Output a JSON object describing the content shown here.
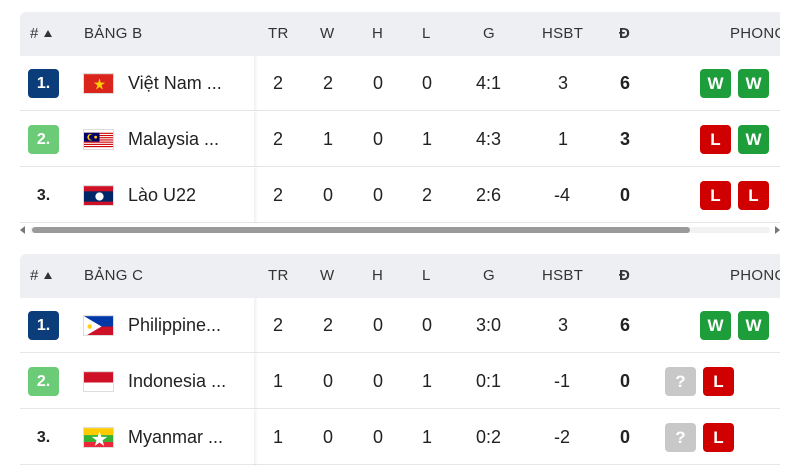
{
  "colors": {
    "rank_blue": "#0b3d7a",
    "rank_green": "#6bcb77",
    "win": "#1e9e3a",
    "loss": "#d10000",
    "unknown": "#c8c8c8"
  },
  "columns": {
    "rank": "#",
    "tr": "TR",
    "w": "W",
    "h": "H",
    "l": "L",
    "g": "G",
    "hsbt": "HSBT",
    "pts": "Đ",
    "form": "PHONG"
  },
  "groups": [
    {
      "name": "BẢNG B",
      "rows": [
        {
          "rank": "1.",
          "rank_style": "blue",
          "flag": "vietnam-flag",
          "team": "Việt Nam ...",
          "tr": "2",
          "w": "2",
          "h": "0",
          "l": "0",
          "g": "4:1",
          "hsbt": "3",
          "pts": "6",
          "form": [
            "W",
            "W"
          ]
        },
        {
          "rank": "2.",
          "rank_style": "green",
          "flag": "malaysia-flag",
          "team": "Malaysia ...",
          "tr": "2",
          "w": "1",
          "h": "0",
          "l": "1",
          "g": "4:3",
          "hsbt": "1",
          "pts": "3",
          "form": [
            "L",
            "W"
          ]
        },
        {
          "rank": "3.",
          "rank_style": "plain",
          "flag": "laos-flag",
          "team": "Lào U22",
          "tr": "2",
          "w": "0",
          "h": "0",
          "l": "2",
          "g": "2:6",
          "hsbt": "-4",
          "pts": "0",
          "form": [
            "L",
            "L"
          ]
        }
      ]
    },
    {
      "name": "BẢNG C",
      "rows": [
        {
          "rank": "1.",
          "rank_style": "blue",
          "flag": "philippines-flag",
          "team": "Philippine...",
          "tr": "2",
          "w": "2",
          "h": "0",
          "l": "0",
          "g": "3:0",
          "hsbt": "3",
          "pts": "6",
          "form": [
            "W",
            "W"
          ]
        },
        {
          "rank": "2.",
          "rank_style": "green",
          "flag": "indonesia-flag",
          "team": "Indonesia ...",
          "tr": "1",
          "w": "0",
          "h": "0",
          "l": "1",
          "g": "0:1",
          "hsbt": "-1",
          "pts": "0",
          "form": [
            "?",
            "L"
          ]
        },
        {
          "rank": "3.",
          "rank_style": "plain",
          "flag": "myanmar-flag",
          "team": "Myanmar ...",
          "tr": "1",
          "w": "0",
          "h": "0",
          "l": "1",
          "g": "0:2",
          "hsbt": "-2",
          "pts": "0",
          "form": [
            "?",
            "L"
          ]
        }
      ]
    }
  ]
}
